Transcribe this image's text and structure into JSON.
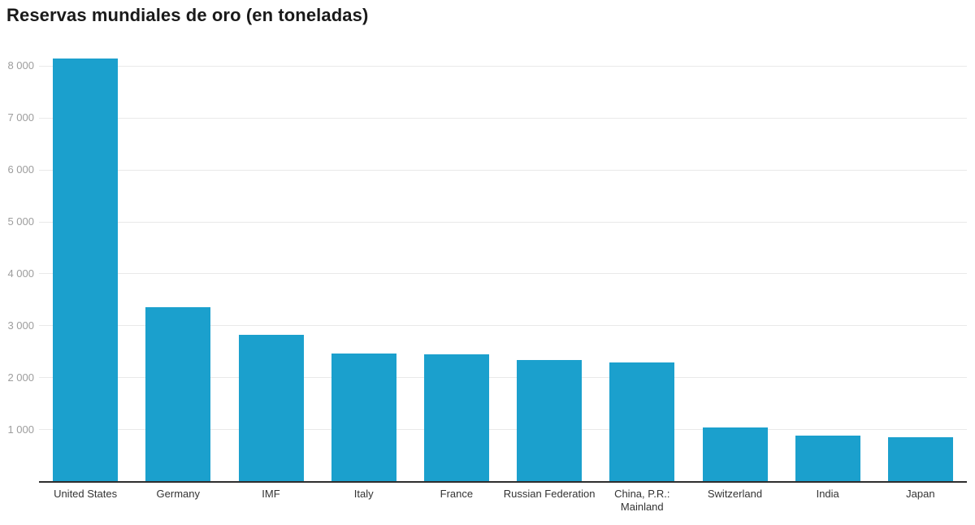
{
  "title": "Reservas mundiales de oro (en toneladas)",
  "chart_data": {
    "type": "bar",
    "title": "Reservas mundiales de oro (en toneladas)",
    "xlabel": "",
    "ylabel": "",
    "categories": [
      "United States",
      "Germany",
      "IMF",
      "Italy",
      "France",
      "Russian Federation",
      "China, P.R.: Mainland",
      "Switzerland",
      "India",
      "Japan"
    ],
    "values": [
      8133,
      3352,
      2814,
      2452,
      2437,
      2333,
      2280,
      1040,
      880,
      846
    ],
    "unit": "toneladas",
    "ylim": [
      0,
      8000
    ],
    "ytick_interval": 1000,
    "ytick_labels": [
      "1 000",
      "2 000",
      "3 000",
      "4 000",
      "5 000",
      "6 000",
      "7 000",
      "8 000"
    ],
    "grid": true,
    "legend": false,
    "colors": {
      "bar": "#1ba0cd",
      "grid": "#e9e9e9",
      "axis_line": "#2e2e2e",
      "ytick_text": "#9d9d9d",
      "xtick_text": "#333333",
      "title_text": "#1a1a1a",
      "background": "#ffffff"
    }
  }
}
